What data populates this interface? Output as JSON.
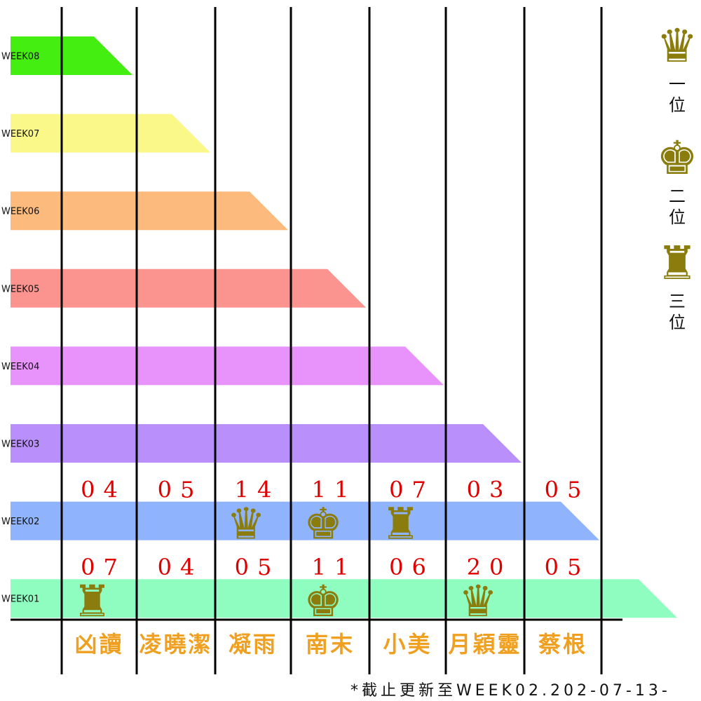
{
  "chart_data": {
    "type": "bar",
    "categories": [
      "凶讀",
      "凌曉潔",
      "凝雨",
      "南末",
      "小美",
      "月穎靈",
      "蔡根"
    ],
    "weeks": [
      {
        "label": "WEEK08",
        "color": "#44ee11",
        "reach": 1
      },
      {
        "label": "WEEK07",
        "color": "#faf888",
        "reach": 2
      },
      {
        "label": "WEEK06",
        "color": "#fcba7c",
        "reach": 3
      },
      {
        "label": "WEEK05",
        "color": "#fb938f",
        "reach": 4
      },
      {
        "label": "WEEK04",
        "color": "#e893fc",
        "reach": 5
      },
      {
        "label": "WEEK03",
        "color": "#b98ffc",
        "reach": 6
      },
      {
        "label": "WEEK02",
        "color": "#8fb3fc",
        "reach": 7
      },
      {
        "label": "WEEK01",
        "color": "#8ffcc0",
        "reach": 8
      }
    ],
    "scores": [
      {
        "week": "WEEK02",
        "values": [
          "04",
          "05",
          "14",
          "11",
          "07",
          "03",
          "05"
        ]
      },
      {
        "week": "WEEK01",
        "values": [
          "07",
          "04",
          "05",
          "11",
          "06",
          "20",
          "05"
        ]
      }
    ],
    "ranks": [
      {
        "week": "WEEK02",
        "first": "凝雨",
        "second": "南末",
        "third": "小美"
      },
      {
        "week": "WEEK01",
        "first": "月穎靈",
        "second": "南末",
        "third": "凶讀"
      }
    ],
    "legend": [
      {
        "icon": "queen-icon",
        "glyph": "♛",
        "label": "一位"
      },
      {
        "icon": "king-icon",
        "glyph": "♚",
        "label": "二位"
      },
      {
        "icon": "rook-icon",
        "glyph": "♜",
        "label": "三位"
      }
    ],
    "piece_color": "#8a7d0e",
    "score_color": "#e00000",
    "name_color": "#f0a020",
    "note": "*截止更新至WEEK02.202-07-13-"
  }
}
